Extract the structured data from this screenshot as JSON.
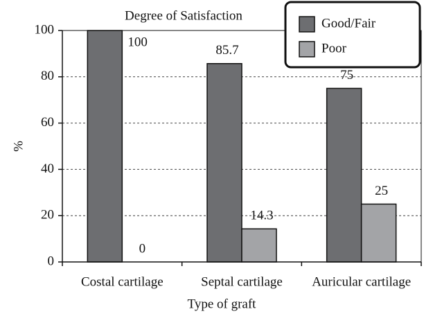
{
  "chart_data": {
    "type": "bar",
    "title": "Degree of Satisfaction",
    "x_label": "Type of graft",
    "y_label": "%",
    "categories": [
      "Costal cartilage",
      "Septal cartilage",
      "Auricular cartilage"
    ],
    "series": [
      {
        "name": "Good/Fair",
        "color": "#6d6e71",
        "values": [
          100,
          85.7,
          75
        ]
      },
      {
        "name": "Poor",
        "color": "#a3a4a7",
        "values": [
          0,
          14.3,
          25
        ]
      }
    ],
    "ylim": [
      0,
      100
    ],
    "yticks": [
      0,
      20,
      40,
      60,
      80,
      100
    ],
    "grid": true,
    "legend": "upper right"
  }
}
